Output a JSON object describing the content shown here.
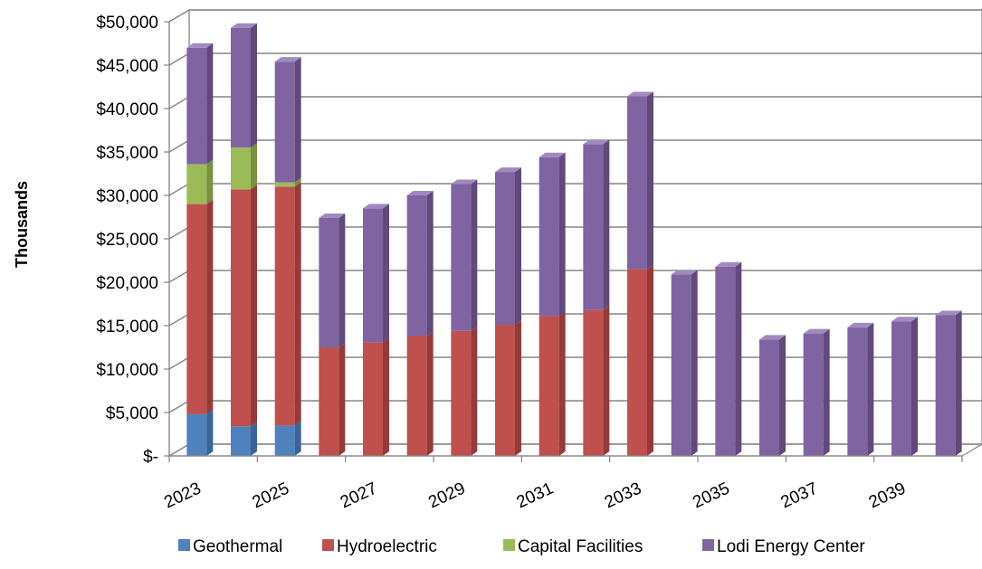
{
  "chart_data": {
    "type": "bar",
    "stacked": true,
    "style": "3d",
    "ylabel": "Thousands",
    "ylim": [
      0,
      50000
    ],
    "y_ticks": [
      {
        "value": 0,
        "label": "$-"
      },
      {
        "value": 5000,
        "label": "$5,000"
      },
      {
        "value": 10000,
        "label": "$10,000"
      },
      {
        "value": 15000,
        "label": "$15,000"
      },
      {
        "value": 20000,
        "label": "$20,000"
      },
      {
        "value": 25000,
        "label": "$25,000"
      },
      {
        "value": 30000,
        "label": "$30,000"
      },
      {
        "value": 35000,
        "label": "$35,000"
      },
      {
        "value": 40000,
        "label": "$40,000"
      },
      {
        "value": 45000,
        "label": "$45,000"
      },
      {
        "value": 50000,
        "label": "$50,000"
      }
    ],
    "categories": [
      "2023",
      "2024",
      "2025",
      "2026",
      "2027",
      "2028",
      "2029",
      "2030",
      "2031",
      "2032",
      "2033",
      "2034",
      "2035",
      "2036",
      "2037",
      "2038",
      "2039",
      "2040"
    ],
    "x_tick_labels": [
      "2023",
      "2025",
      "2027",
      "2029",
      "2031",
      "2033",
      "2035",
      "2037",
      "2039"
    ],
    "grid": true,
    "legend": "bottom",
    "series": [
      {
        "name": "Geothermal",
        "color": "#4F81BD",
        "side_color": "#3A6497",
        "top_color": "#7DA3D3",
        "values": [
          4800,
          3400,
          3500,
          0,
          0,
          0,
          0,
          0,
          0,
          0,
          0,
          0,
          0,
          0,
          0,
          0,
          0,
          0
        ]
      },
      {
        "name": "Hydroelectric",
        "color": "#C0504D",
        "side_color": "#943B39",
        "top_color": "#D9807E",
        "values": [
          24200,
          27300,
          27500,
          12500,
          13100,
          13800,
          14400,
          15100,
          16100,
          16800,
          21500,
          0,
          0,
          0,
          0,
          0,
          0,
          0
        ]
      },
      {
        "name": "Capital Facilities",
        "color": "#9BBB59",
        "side_color": "#779141",
        "top_color": "#B9D185",
        "values": [
          4600,
          4800,
          500,
          0,
          0,
          0,
          0,
          0,
          0,
          0,
          0,
          0,
          0,
          0,
          0,
          0,
          0,
          0
        ]
      },
      {
        "name": "Lodi Energy Center",
        "color": "#8064A2",
        "side_color": "#604A7C",
        "top_color": "#A08ABD",
        "values": [
          13400,
          13800,
          13900,
          14900,
          15400,
          16200,
          16900,
          17600,
          18300,
          19100,
          19900,
          20900,
          21800,
          13400,
          14100,
          14800,
          15500,
          16200
        ]
      }
    ]
  }
}
